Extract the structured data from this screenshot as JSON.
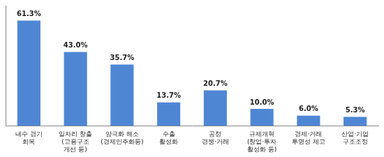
{
  "chart_data": {
    "type": "bar",
    "categories": [
      "내수 경기\n회복",
      "일자리 창출\n(고용구조\n개선 등)",
      "양극화 해소\n(경제민주화등)",
      "수출\n활성화",
      "공정\n경쟁·거래",
      "규제개혁\n(창업·투자\n활성화 등)",
      "경제·거래\n투명성 제고",
      "산업·기업\n구조조정"
    ],
    "values": [
      61.3,
      43.0,
      35.7,
      13.7,
      20.7,
      10.0,
      6.0,
      5.3
    ],
    "value_labels": [
      "61.3%",
      "43.0%",
      "35.7%",
      "13.7%",
      "20.7%",
      "10.0%",
      "6.0%",
      "5.3%"
    ],
    "data_labels": true,
    "color": "#4f86d4",
    "ylim": [
      0,
      70
    ],
    "tick_labels": "x",
    "grid": false
  }
}
